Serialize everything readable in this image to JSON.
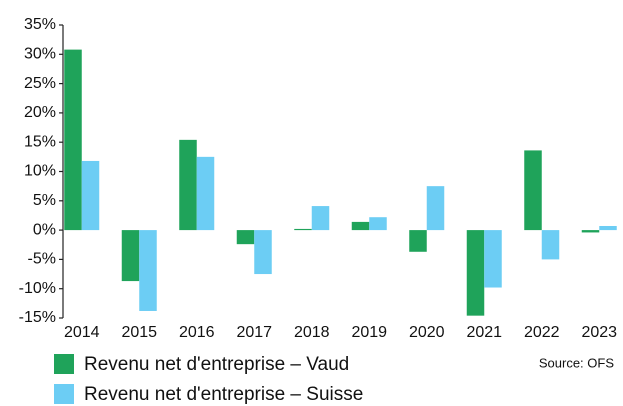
{
  "chart_data": {
    "type": "bar",
    "categories": [
      "2014",
      "2015",
      "2016",
      "2017",
      "2018",
      "2019",
      "2020",
      "2021",
      "2022",
      "2023"
    ],
    "series": [
      {
        "name": "Revenu net d'entreprise – Vaud",
        "color": "#1fa35a",
        "values": [
          30.8,
          -8.7,
          15.4,
          -2.4,
          0.2,
          1.4,
          -3.7,
          -14.6,
          13.6,
          -0.4
        ]
      },
      {
        "name": "Revenu net d'entreprise – Suisse",
        "color": "#6ccdf4",
        "values": [
          11.8,
          -13.8,
          12.5,
          -7.5,
          4.1,
          2.2,
          7.5,
          -9.8,
          -5.0,
          0.7
        ]
      }
    ],
    "ylim": [
      -15,
      35
    ],
    "yticks": [
      {
        "value": -15,
        "label": "-15%"
      },
      {
        "value": -10,
        "label": "-10%"
      },
      {
        "value": -5,
        "label": "-5%"
      },
      {
        "value": 0,
        "label": "0%"
      },
      {
        "value": 5,
        "label": "5%"
      },
      {
        "value": 10,
        "label": "10%"
      },
      {
        "value": 15,
        "label": "15%"
      },
      {
        "value": 20,
        "label": "20%"
      },
      {
        "value": 25,
        "label": "25%"
      },
      {
        "value": 30,
        "label": "30%"
      },
      {
        "value": 35,
        "label": "35%"
      }
    ],
    "grid": false,
    "source": "Source: OFS"
  }
}
